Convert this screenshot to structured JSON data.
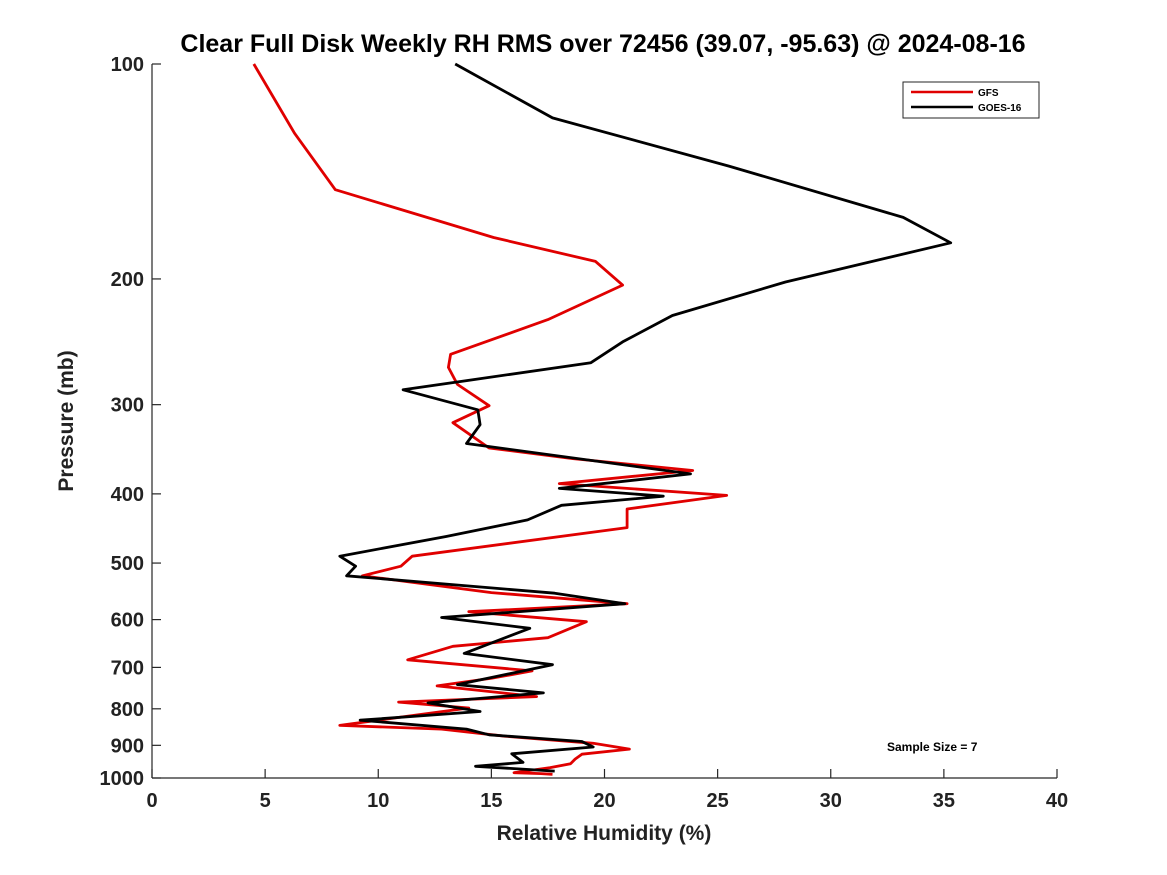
{
  "chart_data": {
    "type": "line",
    "title": "Clear Full Disk Weekly RH RMS over 72456 (39.07, -95.63) @ 2024-08-16",
    "xlabel": "Relative Humidity (%)",
    "ylabel": "Pressure (mb)",
    "xlim": [
      0,
      40
    ],
    "ylim": [
      100,
      1000
    ],
    "y_scale": "log",
    "y_reversed": true,
    "xticks": [
      0,
      5,
      10,
      15,
      20,
      25,
      30,
      35,
      40
    ],
    "yticks": [
      100,
      200,
      300,
      400,
      500,
      600,
      700,
      800,
      900,
      1000
    ],
    "grid": false,
    "legend_position": "top-right",
    "annotation": "Sample Size = 7",
    "series": [
      {
        "name": "GFS",
        "color": "#e00000",
        "points": [
          [
            4.5,
            100
          ],
          [
            6.3,
            125
          ],
          [
            8.1,
            150
          ],
          [
            15.1,
            175
          ],
          [
            19.6,
            189
          ],
          [
            20.8,
            204
          ],
          [
            17.5,
            228
          ],
          [
            13.2,
            255
          ],
          [
            13.1,
            266
          ],
          [
            13.5,
            281
          ],
          [
            14.9,
            301
          ],
          [
            13.3,
            318
          ],
          [
            14.9,
            345
          ],
          [
            18.6,
            357
          ],
          [
            23.9,
            371
          ],
          [
            18.0,
            387
          ],
          [
            25.4,
            402
          ],
          [
            21.0,
            420
          ],
          [
            21.0,
            446
          ],
          [
            11.5,
            489
          ],
          [
            11.0,
            505
          ],
          [
            9.3,
            521
          ],
          [
            15.0,
            550
          ],
          [
            21.0,
            570
          ],
          [
            14.0,
            585
          ],
          [
            19.2,
            604
          ],
          [
            17.5,
            636
          ],
          [
            13.3,
            654
          ],
          [
            11.3,
            683
          ],
          [
            16.8,
            708
          ],
          [
            15.0,
            725
          ],
          [
            12.6,
            743
          ],
          [
            17.0,
            769
          ],
          [
            10.9,
            783
          ],
          [
            14.0,
            798
          ],
          [
            8.3,
            844
          ],
          [
            12.8,
            854
          ],
          [
            15.6,
            874
          ],
          [
            19.5,
            894
          ],
          [
            21.1,
            911
          ],
          [
            19.0,
            926
          ],
          [
            18.7,
            941
          ],
          [
            18.5,
            955
          ],
          [
            17.6,
            967
          ],
          [
            16.0,
            983
          ],
          [
            17.2,
            986
          ],
          [
            17.7,
            988
          ]
        ]
      },
      {
        "name": "GOES-16",
        "color": "#000000",
        "points": [
          [
            13.4,
            100
          ],
          [
            17.7,
            119
          ],
          [
            25.5,
            139
          ],
          [
            33.2,
            164
          ],
          [
            35.3,
            178
          ],
          [
            28.0,
            202
          ],
          [
            23.0,
            225
          ],
          [
            20.8,
            245
          ],
          [
            19.4,
            262
          ],
          [
            11.1,
            286
          ],
          [
            14.4,
            305
          ],
          [
            14.5,
            320
          ],
          [
            13.9,
            340
          ],
          [
            23.8,
            375
          ],
          [
            18.0,
            393
          ],
          [
            22.6,
            403
          ],
          [
            18.1,
            415
          ],
          [
            16.6,
            435
          ],
          [
            13.0,
            459
          ],
          [
            8.3,
            489
          ],
          [
            9.0,
            505
          ],
          [
            8.6,
            521
          ],
          [
            17.8,
            551
          ],
          [
            20.9,
            570
          ],
          [
            12.8,
            596
          ],
          [
            16.7,
            617
          ],
          [
            13.8,
            669
          ],
          [
            17.7,
            694
          ],
          [
            13.5,
            740
          ],
          [
            17.3,
            760
          ],
          [
            12.2,
            785
          ],
          [
            14.5,
            807
          ],
          [
            9.2,
            830
          ],
          [
            13.9,
            854
          ],
          [
            14.9,
            870
          ],
          [
            19.0,
            889
          ],
          [
            19.5,
            905
          ],
          [
            15.9,
            925
          ],
          [
            16.4,
            951
          ],
          [
            14.3,
            963
          ],
          [
            17.8,
            978
          ]
        ]
      }
    ]
  }
}
